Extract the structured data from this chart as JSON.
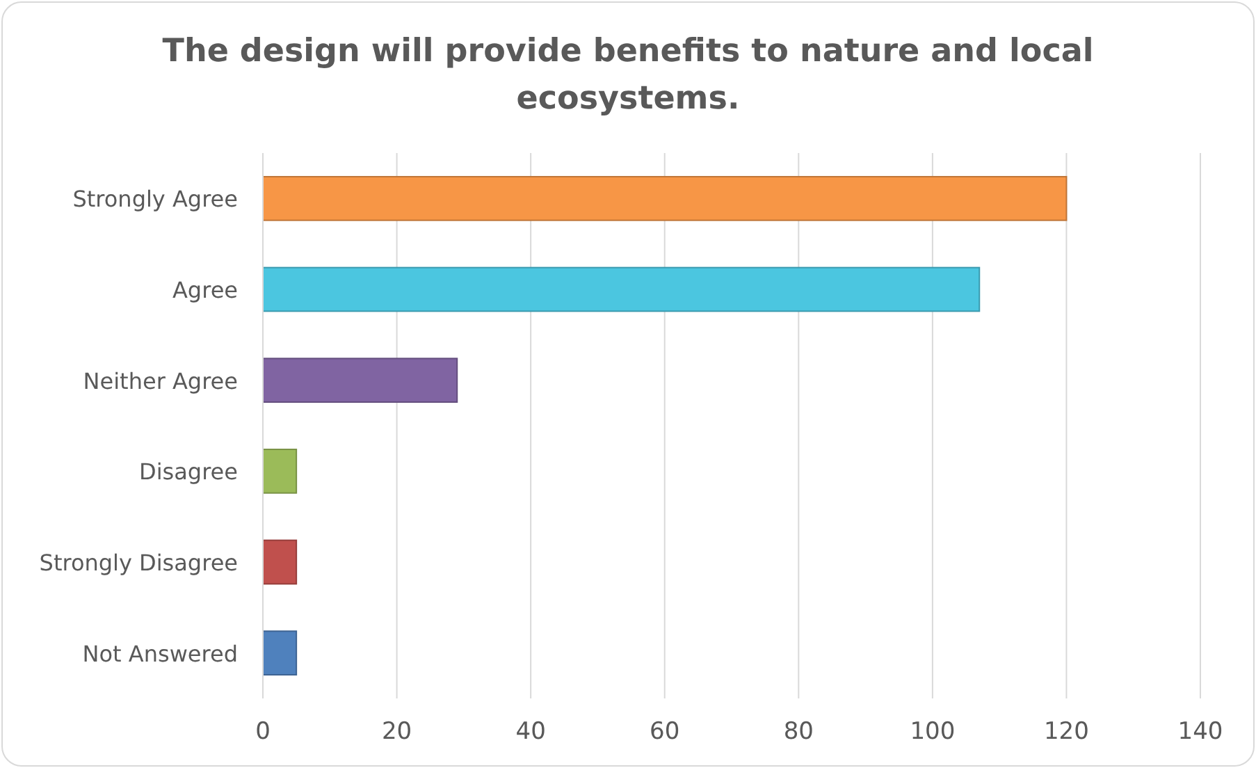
{
  "chart_data": {
    "type": "bar",
    "orientation": "horizontal",
    "title": "The design will provide benefits to nature and local ecosystems.",
    "categories": [
      "Strongly Agree",
      "Agree",
      "Neither Agree",
      "Disagree",
      "Strongly Disagree",
      "Not Answered"
    ],
    "values": [
      120,
      107,
      29,
      5,
      5,
      5
    ],
    "colors": [
      "#f79646",
      "#4bc6e0",
      "#8064a2",
      "#9bbb59",
      "#c0504d",
      "#4f81bd"
    ],
    "xlim": [
      0,
      140
    ],
    "xticks": [
      0,
      20,
      40,
      60,
      80,
      100,
      120,
      140
    ],
    "grid": "x"
  }
}
